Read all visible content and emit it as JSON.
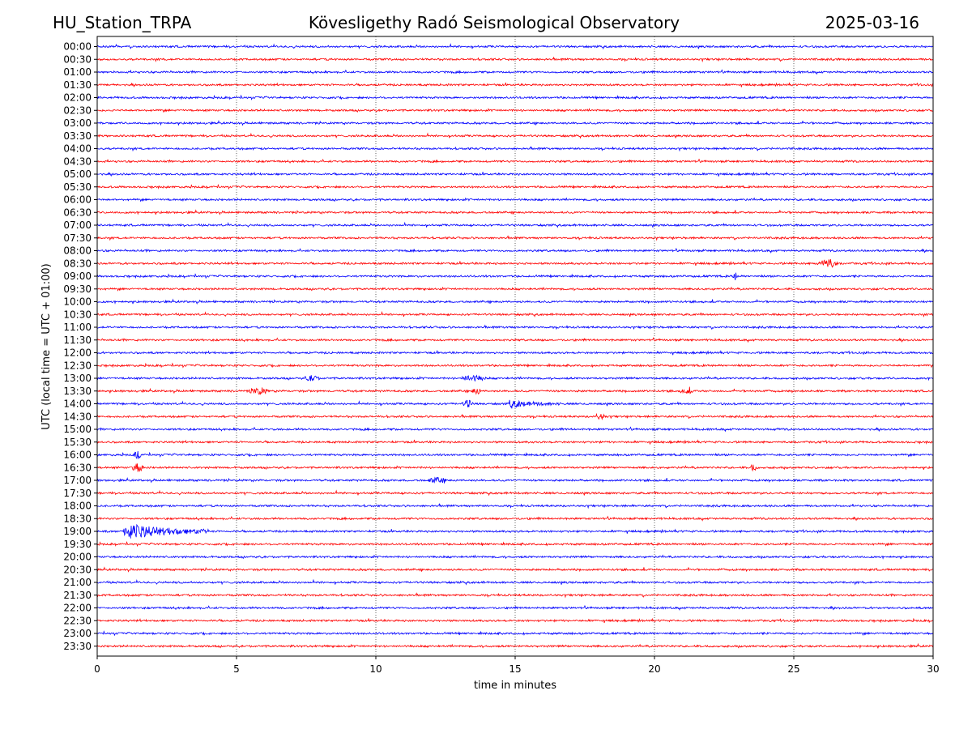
{
  "header": {
    "station": "HU_Station_TRPA",
    "observatory": "Kövesligethy Radó Seismological Observatory",
    "date": "2025-03-16"
  },
  "chart_data": {
    "type": "line",
    "title": "Kövesligethy Radó Seismological Observatory",
    "xlabel": "time in minutes",
    "ylabel": "UTC (local time = UTC + 01:00)",
    "xlim": [
      0,
      30
    ],
    "xticks": [
      "0",
      "5",
      "10",
      "15",
      "20",
      "25",
      "30"
    ],
    "vertical_gridlines_at": [
      5,
      10,
      15,
      20,
      25
    ],
    "grid": "dotted vertical",
    "trace_colors": [
      "#0000ff",
      "#ff0000"
    ],
    "rows": [
      "00:00",
      "00:30",
      "01:00",
      "01:30",
      "02:00",
      "02:30",
      "03:00",
      "03:30",
      "04:00",
      "04:30",
      "05:00",
      "05:30",
      "06:00",
      "06:30",
      "07:00",
      "07:30",
      "08:00",
      "08:30",
      "09:00",
      "09:30",
      "10:00",
      "10:30",
      "11:00",
      "11:30",
      "12:00",
      "12:30",
      "13:00",
      "13:30",
      "14:00",
      "14:30",
      "15:00",
      "15:30",
      "16:00",
      "16:30",
      "17:00",
      "17:30",
      "18:00",
      "18:30",
      "19:00",
      "19:30",
      "20:00",
      "20:30",
      "21:00",
      "21:30",
      "22:00",
      "22:30",
      "23:00",
      "23:30"
    ],
    "events": [
      {
        "row": "08:30",
        "start_min": 25.8,
        "end_min": 26.6,
        "amplitude": 0.55
      },
      {
        "row": "09:00",
        "start_min": 22.8,
        "end_min": 23.0,
        "amplitude": 0.45
      },
      {
        "row": "13:00",
        "start_min": 7.4,
        "end_min": 8.0,
        "amplitude": 0.35
      },
      {
        "row": "13:00",
        "start_min": 13.0,
        "end_min": 14.0,
        "amplitude": 0.35
      },
      {
        "row": "13:30",
        "start_min": 5.4,
        "end_min": 6.2,
        "amplitude": 0.4
      },
      {
        "row": "13:30",
        "start_min": 13.4,
        "end_min": 13.8,
        "amplitude": 0.4
      },
      {
        "row": "13:30",
        "start_min": 20.9,
        "end_min": 21.4,
        "amplitude": 0.35
      },
      {
        "row": "14:00",
        "start_min": 13.1,
        "end_min": 13.5,
        "amplitude": 0.45
      },
      {
        "row": "14:00",
        "start_min": 14.8,
        "end_min": 16.6,
        "amplitude": 0.45
      },
      {
        "row": "14:30",
        "start_min": 17.8,
        "end_min": 18.3,
        "amplitude": 0.3
      },
      {
        "row": "16:00",
        "start_min": 1.3,
        "end_min": 1.6,
        "amplitude": 0.5
      },
      {
        "row": "16:30",
        "start_min": 1.2,
        "end_min": 1.7,
        "amplitude": 0.5
      },
      {
        "row": "16:30",
        "start_min": 23.4,
        "end_min": 23.7,
        "amplitude": 0.35
      },
      {
        "row": "17:00",
        "start_min": 11.8,
        "end_min": 12.6,
        "amplitude": 0.3
      },
      {
        "row": "19:00",
        "start_min": 0.95,
        "end_min": 4.0,
        "amplitude": 1.2
      }
    ]
  }
}
